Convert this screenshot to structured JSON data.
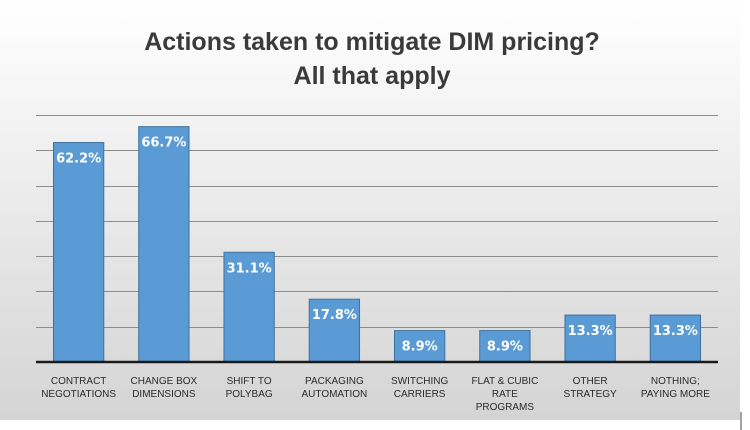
{
  "chart_data": {
    "type": "bar",
    "title": "Actions taken to mitigate DIM pricing?",
    "subtitle": "All that apply",
    "categories": [
      [
        "CONTRACT",
        "NEGOTIATIONS"
      ],
      [
        "CHANGE BOX",
        "DIMENSIONS"
      ],
      [
        "SHIFT TO",
        "POLYBAG"
      ],
      [
        "PACKAGING",
        "AUTOMATION"
      ],
      [
        "SWITCHING",
        "CARRIERS"
      ],
      [
        "FLAT & CUBIC",
        "RATE",
        "PROGRAMS"
      ],
      [
        "OTHER",
        "STRATEGY"
      ],
      [
        "NOTHING;",
        "PAYING MORE"
      ]
    ],
    "values": [
      62.2,
      66.7,
      31.1,
      17.8,
      8.9,
      8.9,
      13.3,
      13.3
    ],
    "data_labels": [
      "62.2%",
      "66.7%",
      "31.1%",
      "17.8%",
      "8.9%",
      "8.9%",
      "13.3%",
      "13.3%"
    ],
    "xlabel": "",
    "ylabel": "",
    "ylim": [
      0,
      70
    ],
    "y_tick_step": 10,
    "y_tick_labels_visible": false,
    "grid": true,
    "legend": "none",
    "colors": {
      "bar": "#5b9bd5",
      "bar_edge": "#41719c",
      "plot_background_top": "#ffffff",
      "plot_background_bottom": "#d4d4d4",
      "gridline": "#8c8c8c",
      "axis": "#1a1a1a",
      "title": "#3a3a3a"
    }
  }
}
